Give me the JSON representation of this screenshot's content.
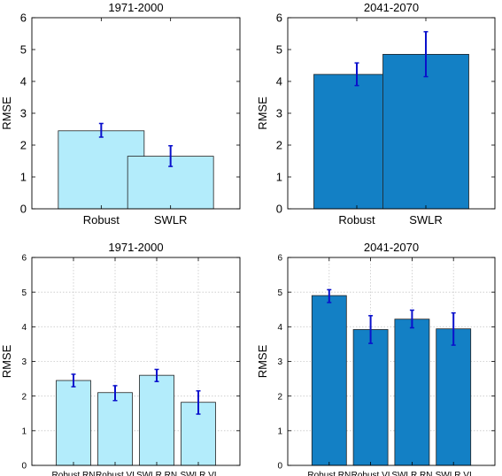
{
  "chart_data": [
    {
      "type": "bar",
      "title": "1971-2000",
      "ylabel": "RMSE",
      "xlabel": "",
      "categories": [
        "Robust",
        "SWLR"
      ],
      "values": [
        2.45,
        1.65
      ],
      "error_low": [
        2.25,
        1.33
      ],
      "error_high": [
        2.68,
        1.98
      ],
      "ylim": [
        0,
        6
      ],
      "yticks": [
        "0",
        "1",
        "2",
        "3",
        "4",
        "5",
        "6"
      ],
      "grid": false,
      "bar_color": "#b3ecfb",
      "error_color": "#0a10cc"
    },
    {
      "type": "bar",
      "title": "2041-2070",
      "ylabel": "RMSE",
      "xlabel": "",
      "categories": [
        "Robust",
        "SWLR"
      ],
      "values": [
        4.22,
        4.85
      ],
      "error_low": [
        3.87,
        4.15
      ],
      "error_high": [
        4.58,
        5.56
      ],
      "ylim": [
        0,
        6
      ],
      "yticks": [
        "0",
        "1",
        "2",
        "3",
        "4",
        "5",
        "6"
      ],
      "grid": false,
      "bar_color": "#1380c5",
      "error_color": "#0a10cc"
    },
    {
      "type": "bar",
      "title": "1971-2000",
      "ylabel": "RMSE",
      "xlabel": "",
      "categories": [
        "Robust RN",
        "Robust VI",
        "SWLR RN",
        "SWLR VI"
      ],
      "values": [
        2.45,
        2.1,
        2.6,
        1.82
      ],
      "error_low": [
        2.27,
        1.87,
        2.42,
        1.48
      ],
      "error_high": [
        2.63,
        2.3,
        2.77,
        2.15
      ],
      "ylim": [
        0,
        6
      ],
      "yticks": [
        "0",
        "1",
        "2",
        "3",
        "4",
        "5",
        "6"
      ],
      "grid": true,
      "bar_color": "#b3ecfb",
      "error_color": "#0a10cc"
    },
    {
      "type": "bar",
      "title": "2041-2070",
      "ylabel": "RMSE",
      "xlabel": "",
      "categories": [
        "Robust RN",
        "Robust VI",
        "SWLR RN",
        "SWLR VI"
      ],
      "values": [
        4.9,
        3.92,
        4.22,
        3.94
      ],
      "error_low": [
        4.7,
        3.52,
        3.97,
        3.47
      ],
      "error_high": [
        5.07,
        4.32,
        4.48,
        4.4
      ],
      "ylim": [
        0,
        6
      ],
      "yticks": [
        "0",
        "1",
        "2",
        "3",
        "4",
        "5",
        "6"
      ],
      "grid": true,
      "bar_color": "#1380c5",
      "error_color": "#0a10cc"
    }
  ]
}
